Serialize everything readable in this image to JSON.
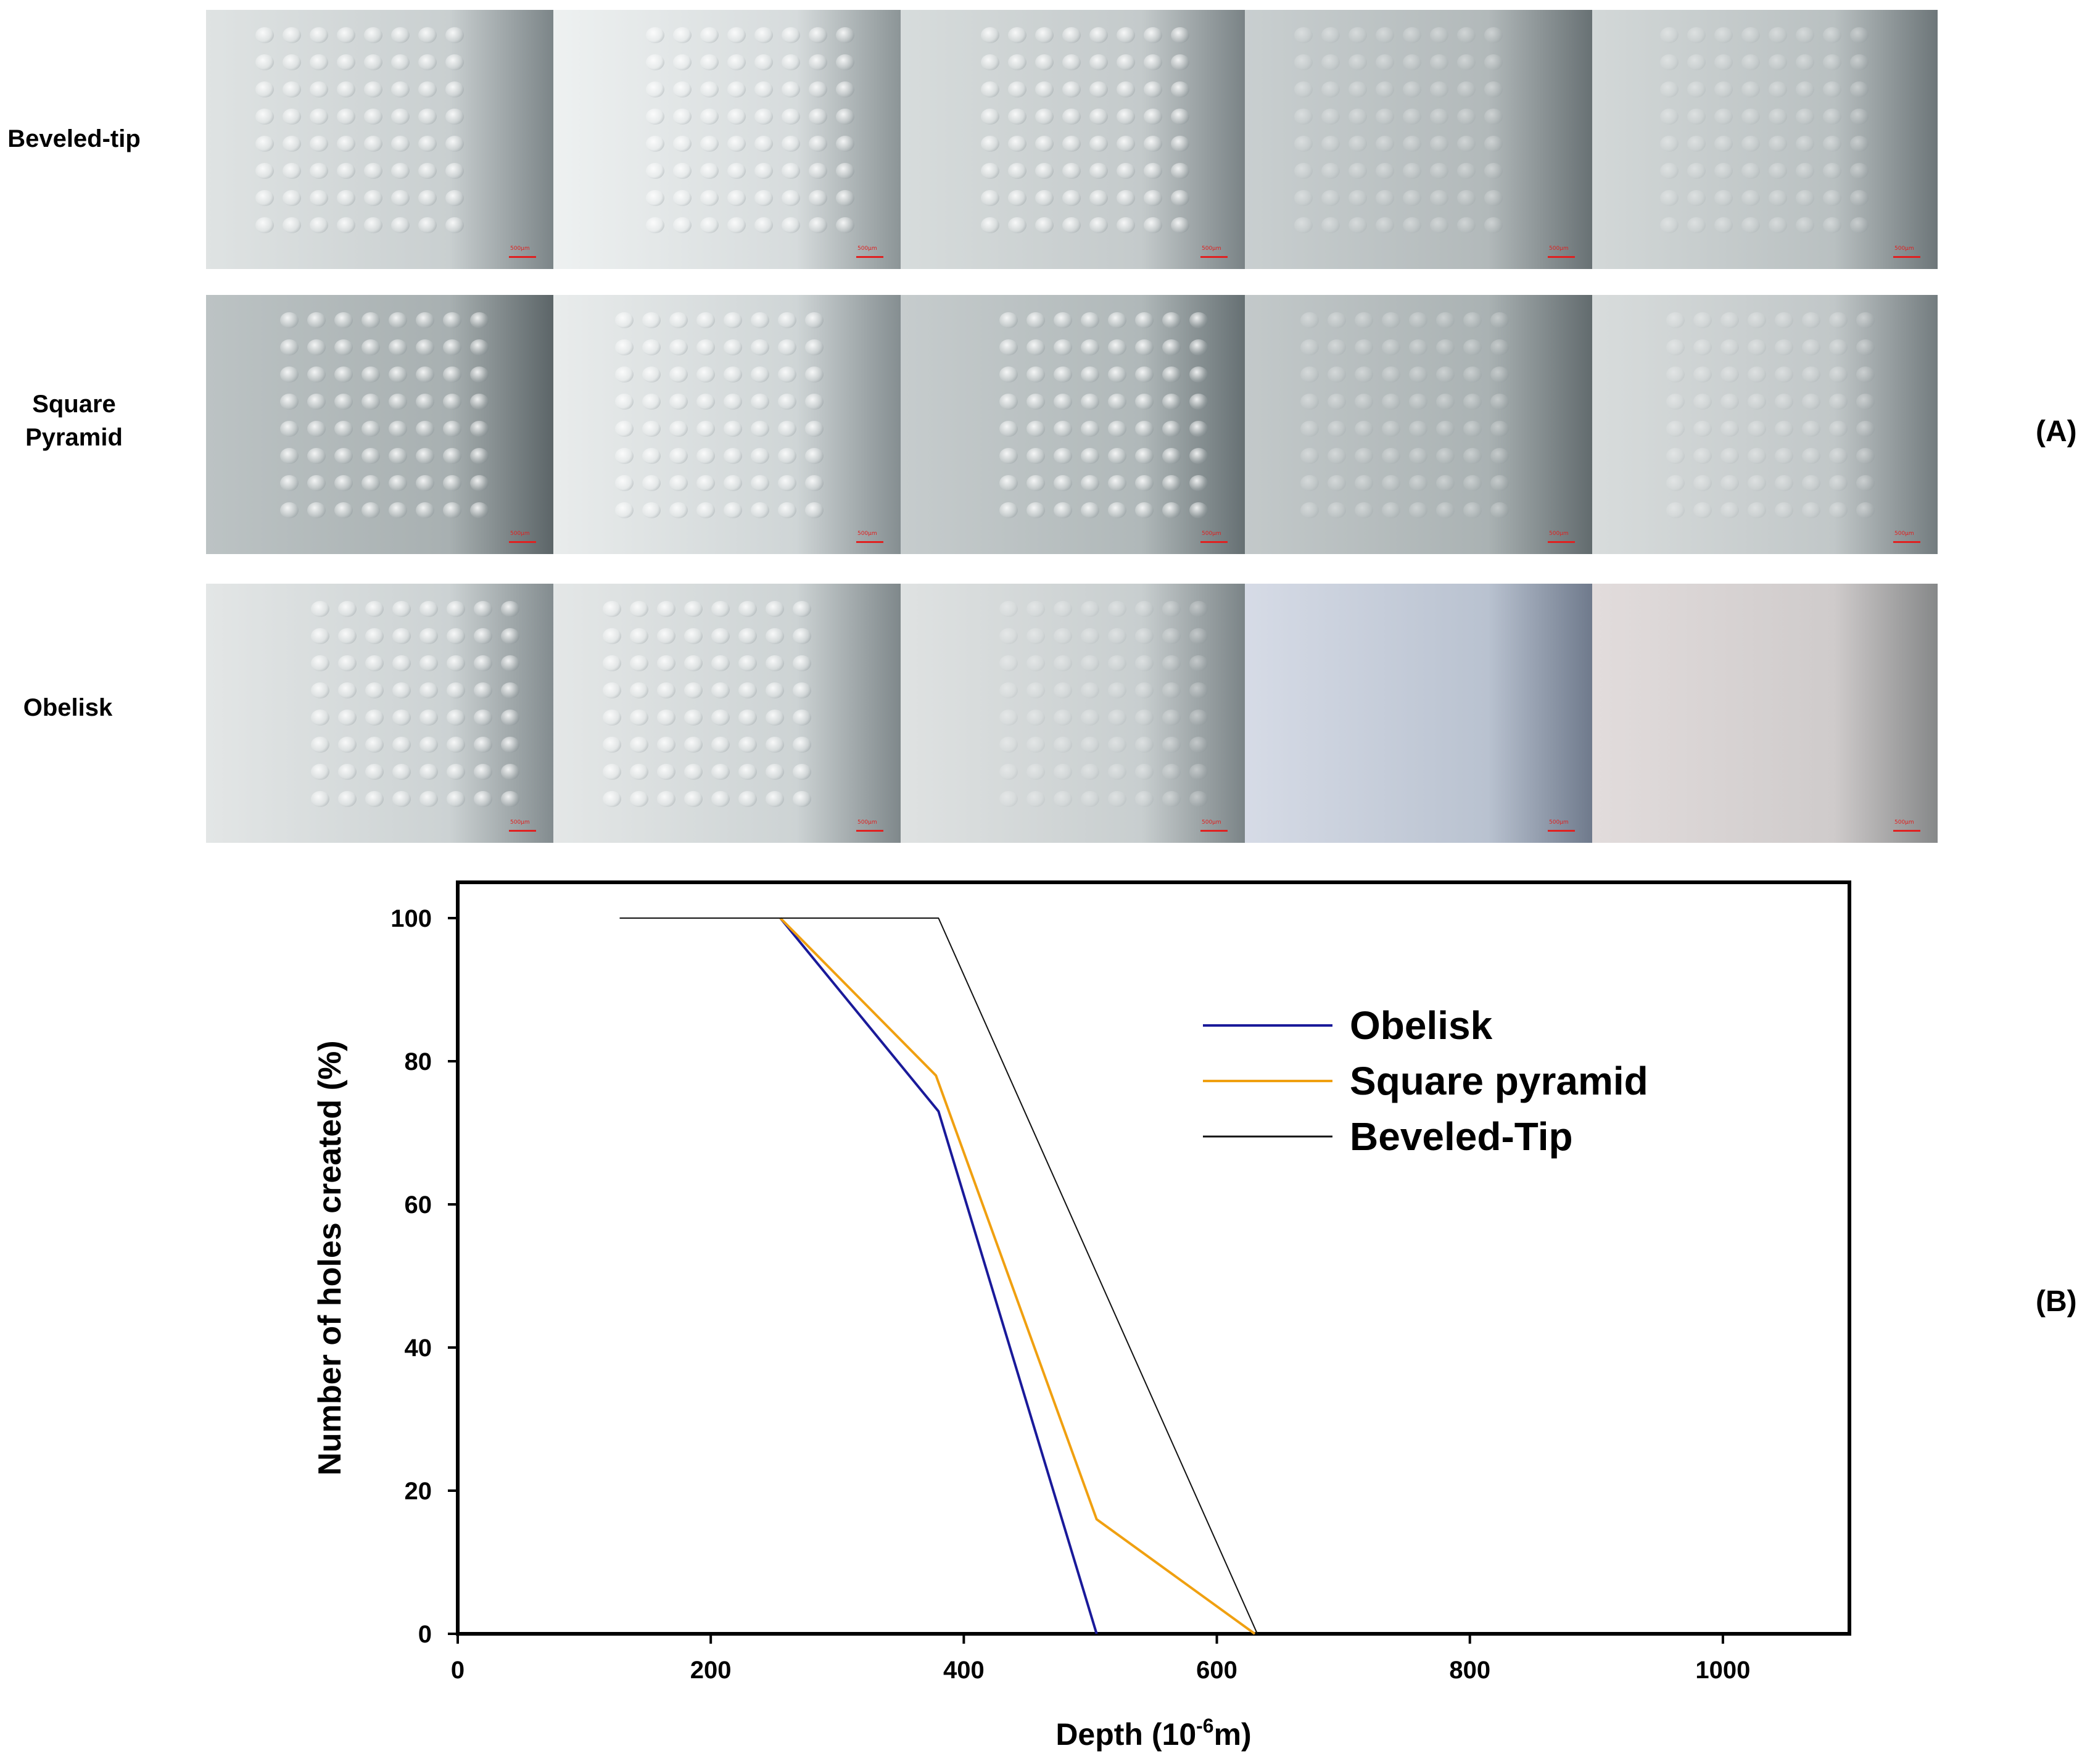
{
  "panel_a": {
    "letter": "(A)",
    "rows": [
      {
        "label_lines": [
          "Beveled-tip"
        ],
        "visible_arrays": [
          1,
          1,
          1,
          1,
          1
        ]
      },
      {
        "label_lines": [
          "Square",
          "Pyramid"
        ],
        "visible_arrays": [
          1,
          1,
          1,
          1,
          1
        ]
      },
      {
        "label_lines": [
          "Obelisk"
        ],
        "visible_arrays": [
          1,
          1,
          1,
          0,
          0
        ]
      }
    ],
    "scale_label": "500μm",
    "colors": {
      "scale_bar": "#e02020"
    }
  },
  "panel_b": {
    "letter": "(B)"
  },
  "chart_data": {
    "type": "line",
    "title": "",
    "xlabel": "Depth (10",
    "xlabel_sup": "-6",
    "xlabel_tail": "m)",
    "ylabel": "Number of holes created (%)",
    "xlim": [
      0,
      1100
    ],
    "ylim": [
      0,
      105
    ],
    "xticks": [
      0,
      200,
      400,
      600,
      800,
      1000
    ],
    "yticks": [
      0,
      20,
      40,
      60,
      80,
      100
    ],
    "grid": false,
    "legend_position": "top-right",
    "series": [
      {
        "name": "Obelisk",
        "color": "#1a1a9a",
        "stroke": 4,
        "x": [
          255,
          380,
          505
        ],
        "y": [
          100,
          73,
          0
        ]
      },
      {
        "name": "Square pyramid",
        "color": "#f0a010",
        "stroke": 4,
        "x": [
          255,
          378,
          505,
          630
        ],
        "y": [
          100,
          78,
          16,
          0
        ]
      },
      {
        "name": "Beveled-Tip",
        "color": "#111111",
        "stroke": 2,
        "x": [
          128,
          380,
          632
        ],
        "y": [
          100,
          100,
          0
        ]
      }
    ]
  }
}
